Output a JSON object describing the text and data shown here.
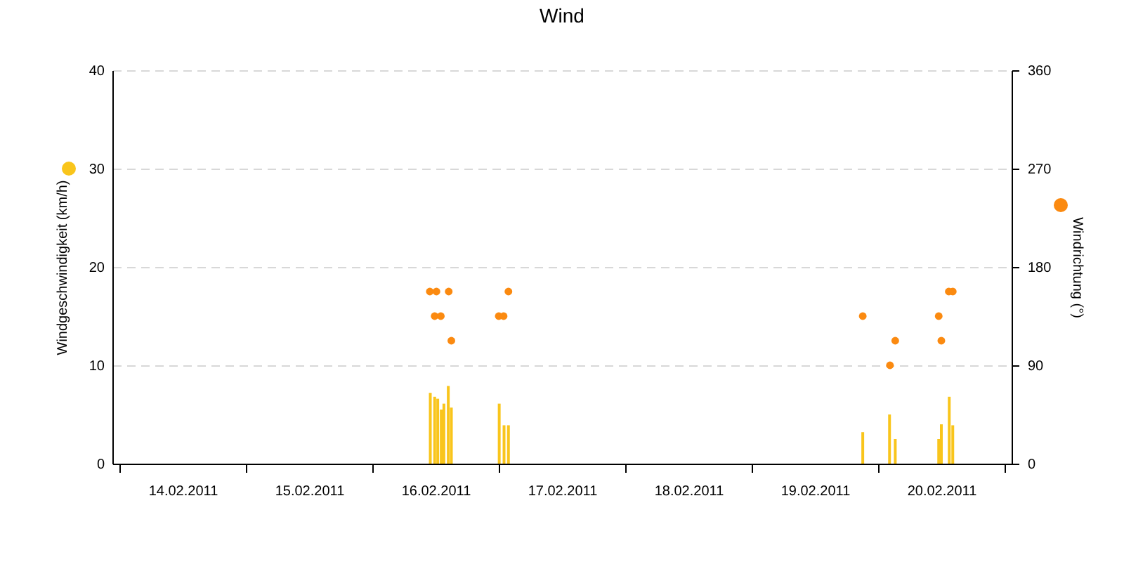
{
  "chart_data": {
    "type": "bar",
    "title": "Wind",
    "ylabel": "Windgeschwindigkeit (km/h)",
    "y2label": "Windrichtung (°)",
    "xlim": [
      "2011-02-14T00:00",
      "2011-02-21T00:00"
    ],
    "xticks": [
      {
        "value": "2011-02-14T00:00",
        "label": null
      },
      {
        "value": "2011-02-15T00:00",
        "label": null
      },
      {
        "value": "2011-02-16T00:00",
        "label": null
      },
      {
        "value": "2011-02-17T00:00",
        "label": null
      },
      {
        "value": "2011-02-18T00:00",
        "label": null
      },
      {
        "value": "2011-02-19T00:00",
        "label": null
      },
      {
        "value": "2011-02-20T00:00",
        "label": null
      },
      {
        "value": "2011-02-21T00:00",
        "label": null
      },
      {
        "value": "2011-02-14T12:00",
        "label": "14.02.2011"
      },
      {
        "value": "2011-02-15T12:00",
        "label": "15.02.2011"
      },
      {
        "value": "2011-02-16T12:00",
        "label": "16.02.2011"
      },
      {
        "value": "2011-02-17T12:00",
        "label": "17.02.2011"
      },
      {
        "value": "2011-02-18T12:00",
        "label": "18.02.2011"
      },
      {
        "value": "2011-02-19T12:00",
        "label": "19.02.2011"
      },
      {
        "value": "2011-02-20T12:00",
        "label": "20.02.2011"
      }
    ],
    "ylim": [
      0,
      40
    ],
    "yticks": [
      0,
      10,
      20,
      30,
      40
    ],
    "y2lim": [
      0,
      360
    ],
    "y2ticks": [
      0,
      90,
      180,
      270,
      360
    ],
    "grid": "y",
    "marker": "circle",
    "series": [
      {
        "color": "#f9c51b",
        "x": [
          "2011-02-16T11:00",
          "2011-02-16T11:50",
          "2011-02-16T12:25",
          "2011-02-16T13:05",
          "2011-02-16T13:35",
          "2011-02-16T14:25",
          "2011-02-16T15:00",
          "2011-02-17T00:05",
          "2011-02-17T01:00",
          "2011-02-17T01:50",
          "2011-02-19T21:05",
          "2011-02-20T02:10",
          "2011-02-20T03:15",
          "2011-02-20T11:30",
          "2011-02-20T12:00",
          "2011-02-20T13:30",
          "2011-02-20T14:10"
        ],
        "values": [
          7.2,
          6.8,
          6.6,
          5.5,
          6.1,
          7.9,
          5.7,
          6.1,
          3.9,
          3.9,
          3.2,
          5.0,
          2.5,
          2.5,
          4.0,
          6.8,
          3.9
        ]
      },
      {
        "type": "scatter",
        "axis": "y2",
        "color": "#fb8a10",
        "x": [
          "2011-02-16T10:55",
          "2011-02-16T12:10",
          "2011-02-16T14:30",
          "2011-02-17T01:50",
          "2011-02-16T11:50",
          "2011-02-16T13:00",
          "2011-02-16T13:15",
          "2011-02-17T00:00",
          "2011-02-17T00:55",
          "2011-02-16T15:00",
          "2011-02-19T21:05",
          "2011-02-20T02:15",
          "2011-02-20T03:15",
          "2011-02-20T11:30",
          "2011-02-20T12:00",
          "2011-02-20T13:25",
          "2011-02-20T14:10"
        ],
        "values": [
          157.5,
          157.5,
          157.5,
          157.5,
          135,
          135,
          null,
          135,
          135,
          112.5,
          135,
          90,
          112.5,
          135,
          112.5,
          157.5,
          157.5
        ]
      }
    ]
  }
}
